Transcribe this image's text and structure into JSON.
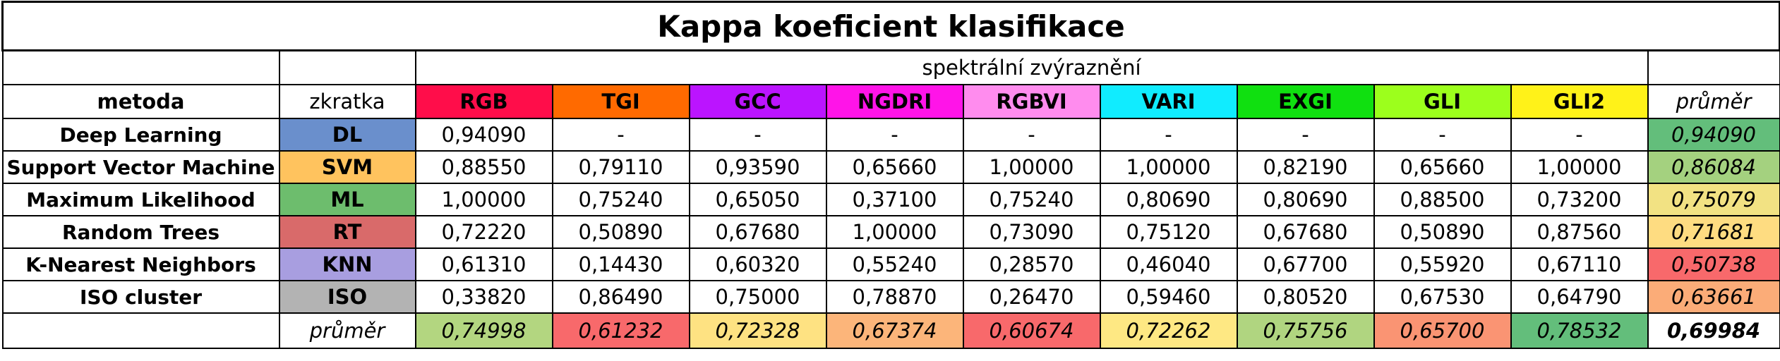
{
  "title": "Kappa koeficient klasifikace",
  "spectral_header": "spektrální zvýraznění",
  "col_method": "metoda",
  "col_abbr": "zkratka",
  "col_avg": "průměr",
  "indices": [
    {
      "label": "RGB",
      "color": "#ff0d4a"
    },
    {
      "label": "TGI",
      "color": "#ff6a00"
    },
    {
      "label": "GCC",
      "color": "#bb14ff"
    },
    {
      "label": "NGDRI",
      "color": "#ff14e8"
    },
    {
      "label": "RGBVI",
      "color": "#ff8cee"
    },
    {
      "label": "VARI",
      "color": "#10ecff"
    },
    {
      "label": "EXGI",
      "color": "#10e010"
    },
    {
      "label": "GLI",
      "color": "#9cff1c"
    },
    {
      "label": "GLI2",
      "color": "#fff219"
    }
  ],
  "rows": [
    {
      "method": "Deep Learning",
      "abbr": "DL",
      "abbr_color": "#6a8fcc",
      "values": [
        "0,94090",
        "-",
        "-",
        "-",
        "-",
        "-",
        "-",
        "-",
        "-"
      ],
      "avg": "0,94090",
      "avg_color": "#63be7b"
    },
    {
      "method": "Support Vector Machine",
      "abbr": "SVM",
      "abbr_color": "#ffc35e",
      "values": [
        "0,88550",
        "0,79110",
        "0,93590",
        "0,65660",
        "1,00000",
        "1,00000",
        "0,82190",
        "0,65660",
        "1,00000"
      ],
      "avg": "0,86084",
      "avg_color": "#a4d17f"
    },
    {
      "method": "Maximum Likelihood",
      "abbr": "ML",
      "abbr_color": "#6dbd6d",
      "values": [
        "1,00000",
        "0,75240",
        "0,65050",
        "0,37100",
        "0,75240",
        "0,80690",
        "0,80690",
        "0,88500",
        "0,73200"
      ],
      "avg": "0,75079",
      "avg_color": "#f2e283"
    },
    {
      "method": "Random Trees",
      "abbr": "RT",
      "abbr_color": "#d96a6a",
      "values": [
        "0,72220",
        "0,50890",
        "0,67680",
        "1,00000",
        "0,73090",
        "0,75120",
        "0,67680",
        "0,50890",
        "0,87560"
      ],
      "avg": "0,71681",
      "avg_color": "#fedc81"
    },
    {
      "method": "K-Nearest Neighbors",
      "abbr": "KNN",
      "abbr_color": "#a89ee0",
      "values": [
        "0,61310",
        "0,14430",
        "0,60320",
        "0,55240",
        "0,28570",
        "0,46040",
        "0,67700",
        "0,55920",
        "0,67110"
      ],
      "avg": "0,50738",
      "avg_color": "#f8696b"
    },
    {
      "method": "ISO cluster",
      "abbr": "ISO",
      "abbr_color": "#b3b3b3",
      "values": [
        "0,33820",
        "0,86490",
        "0,75000",
        "0,78870",
        "0,26470",
        "0,59460",
        "0,80520",
        "0,67530",
        "0,64790"
      ],
      "avg": "0,63661",
      "avg_color": "#fbac78"
    }
  ],
  "avg_row": {
    "label": "průměr",
    "values": [
      "0,74998",
      "0,61232",
      "0,72328",
      "0,67374",
      "0,60674",
      "0,72262",
      "0,75756",
      "0,65700",
      "0,78532"
    ],
    "colors": [
      "#b3d680",
      "#f8696b",
      "#fee282",
      "#fcb57a",
      "#f8696b",
      "#fee883",
      "#b0d580",
      "#fa9473",
      "#63be7b"
    ],
    "grand": "0,69984"
  }
}
